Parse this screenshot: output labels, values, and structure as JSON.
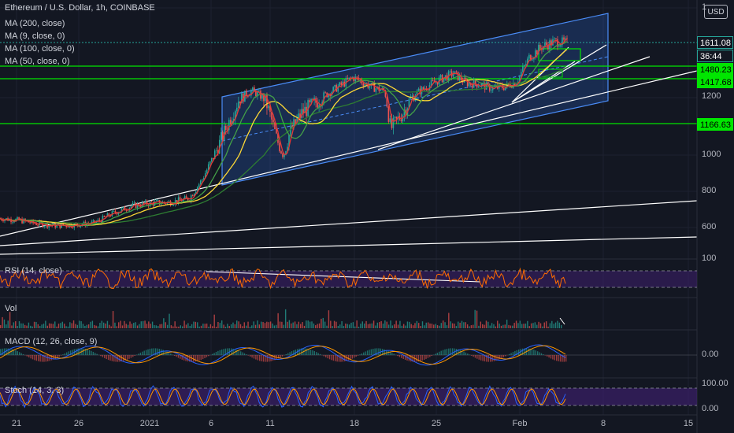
{
  "title": "Ethereum / U.S. Dollar, 1h, COINBASE",
  "currency_button": "USD",
  "indicators": [
    "MA (200, close)",
    "MA (9, close, 0)",
    "MA (100, close, 0)",
    "MA (50, close, 0)"
  ],
  "panels": {
    "rsi": "RSI (14, close)",
    "vol": "Vol",
    "macd": "MACD (12, 26, close, 9)",
    "stoch": "Stoch (14, 3, 3)"
  },
  "price_tags": [
    {
      "text": "1611.08",
      "bg": "#131722",
      "fg": "#ffffff",
      "border": "#26a69a"
    },
    {
      "text": "36:44",
      "bg": "#131722",
      "fg": "#ffffff",
      "border": "#26a69a"
    },
    {
      "text": "1480.23",
      "bg": "#00e600",
      "fg": "#000000",
      "border": "#00e600"
    },
    {
      "text": "1417.68",
      "bg": "#00e600",
      "fg": "#000000",
      "border": "#00e600"
    },
    {
      "text": "1166.63",
      "bg": "#00e600",
      "fg": "#000000",
      "border": "#00e600"
    }
  ],
  "colors": {
    "background": "#131722",
    "grid": "#1e2230",
    "channel": "#3179f5",
    "support": "#00e600",
    "trend": "#ffffff",
    "ma200": "#2e7d32",
    "ma9": "#e53935",
    "ma100": "#fdd835",
    "ma50": "#43a047",
    "rsi": "#ff6d00",
    "stoch_k": "#2962ff",
    "stoch_d": "#ff9800",
    "up": "#26a69a",
    "down": "#ef5350",
    "band": "#3e1f6e"
  },
  "chart_data": {
    "type": "candlestick",
    "title": "Ethereum / U.S. Dollar, 1h, COINBASE",
    "x_ticks": [
      "21",
      "26",
      "2021",
      "6",
      "11",
      "18",
      "25",
      "Feb",
      "8",
      "15"
    ],
    "y_ticks": [
      600,
      800,
      1000,
      1200
    ],
    "y_axis_partial_labels": [
      "1",
      "100"
    ],
    "ylim": [
      450,
      1900
    ],
    "support_levels": [
      1480.23,
      1417.68,
      1166.63
    ],
    "last_price": 1611.08,
    "countdown": "36:44",
    "rsi_ticks": [
      "100"
    ],
    "macd_ticks": [
      "0.00"
    ],
    "stoch_ticks": [
      "100.00",
      "0.00"
    ],
    "price_path": [
      [
        0,
        650
      ],
      [
        6,
        640
      ],
      [
        12,
        620
      ],
      [
        18,
        610
      ],
      [
        24,
        615
      ],
      [
        30,
        625
      ],
      [
        36,
        680
      ],
      [
        42,
        720
      ],
      [
        48,
        735
      ],
      [
        54,
        740
      ],
      [
        60,
        760
      ],
      [
        64,
        860
      ],
      [
        68,
        1000
      ],
      [
        72,
        1100
      ],
      [
        76,
        1200
      ],
      [
        80,
        1250
      ],
      [
        84,
        1200
      ],
      [
        86,
        1130
      ],
      [
        88,
        1050
      ],
      [
        90,
        1000
      ],
      [
        92,
        1080
      ],
      [
        96,
        1150
      ],
      [
        100,
        1180
      ],
      [
        104,
        1230
      ],
      [
        108,
        1290
      ],
      [
        112,
        1350
      ],
      [
        114,
        1330
      ],
      [
        118,
        1280
      ],
      [
        122,
        1250
      ],
      [
        124,
        1090
      ],
      [
        128,
        1150
      ],
      [
        132,
        1230
      ],
      [
        136,
        1290
      ],
      [
        140,
        1340
      ],
      [
        144,
        1380
      ],
      [
        148,
        1310
      ],
      [
        152,
        1300
      ],
      [
        156,
        1270
      ],
      [
        160,
        1280
      ],
      [
        164,
        1320
      ],
      [
        168,
        1500
      ],
      [
        172,
        1580
      ],
      [
        176,
        1620
      ],
      [
        180,
        1611
      ]
    ]
  }
}
